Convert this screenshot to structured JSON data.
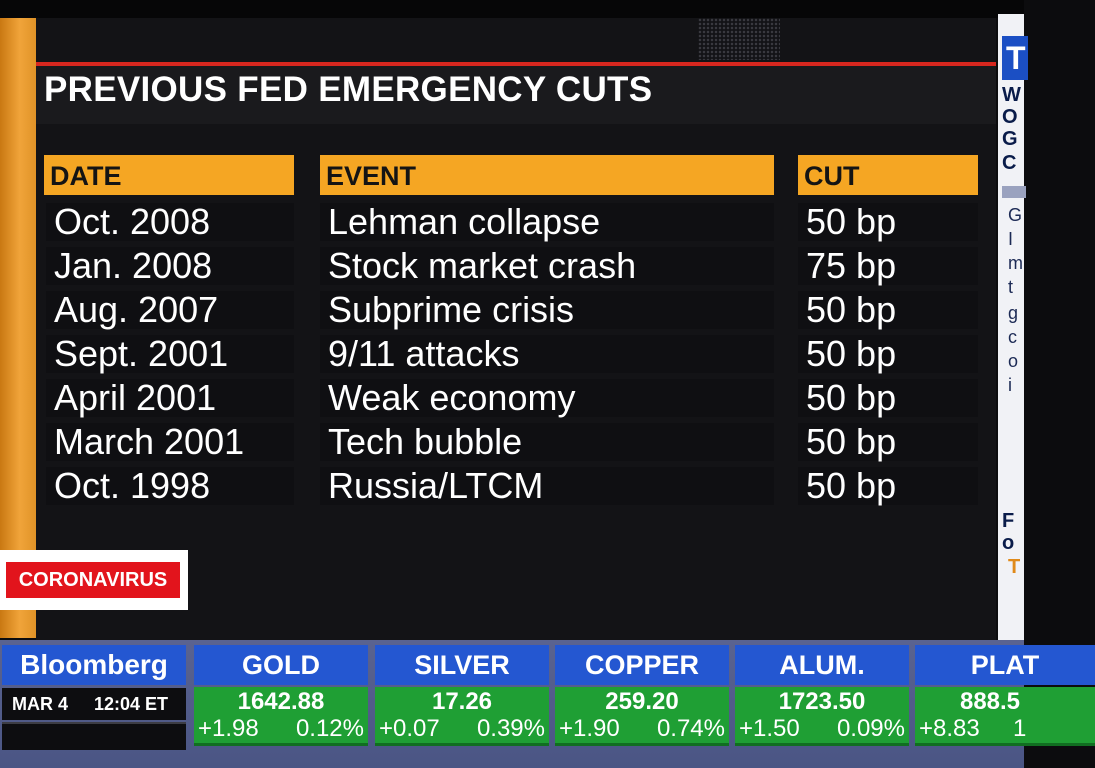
{
  "graphic": {
    "title": "PREVIOUS FED EMERGENCY CUTS",
    "headers": {
      "date": "DATE",
      "event": "EVENT",
      "cut": "CUT"
    },
    "rows": [
      {
        "date": "Oct. 2008",
        "event": "Lehman collapse",
        "cut": "50 bp"
      },
      {
        "date": "Jan. 2008",
        "event": "Stock market crash",
        "cut": "75 bp"
      },
      {
        "date": "Aug. 2007",
        "event": "Subprime crisis",
        "cut": "50 bp"
      },
      {
        "date": "Sept. 2001",
        "event": "9/11 attacks",
        "cut": "50 bp"
      },
      {
        "date": "April 2001",
        "event": "Weak economy",
        "cut": "50 bp"
      },
      {
        "date": "March 2001",
        "event": "Tech bubble",
        "cut": "50 bp"
      },
      {
        "date": "Oct. 1998",
        "event": "Russia/LTCM",
        "cut": "50 bp"
      }
    ]
  },
  "tag": {
    "label": "CORONAVIRUS"
  },
  "side_panel": {
    "box_letter": "T",
    "bold_lines": [
      "W",
      "O",
      "G",
      "C"
    ],
    "text_lines": [
      "G",
      "I",
      "m",
      "t",
      "g",
      "c",
      "o",
      "i"
    ],
    "lower_bold": [
      "F",
      "o"
    ],
    "orange_letter": "T"
  },
  "ticker": {
    "brand": "Bloomberg",
    "date": "MAR 4",
    "time": "12:04 ET",
    "items": [
      {
        "name": "GOLD",
        "price": "1642.88",
        "change": "+1.98",
        "pct": "0.12%"
      },
      {
        "name": "SILVER",
        "price": "17.26",
        "change": "+0.07",
        "pct": "0.39%"
      },
      {
        "name": "COPPER",
        "price": "259.20",
        "change": "+1.90",
        "pct": "0.74%"
      },
      {
        "name": "ALUM.",
        "price": "1723.50",
        "change": "+1.50",
        "pct": "0.09%"
      },
      {
        "name": "PLAT",
        "price": "888.5",
        "change": "+8.83",
        "pct": "1"
      }
    ]
  }
}
